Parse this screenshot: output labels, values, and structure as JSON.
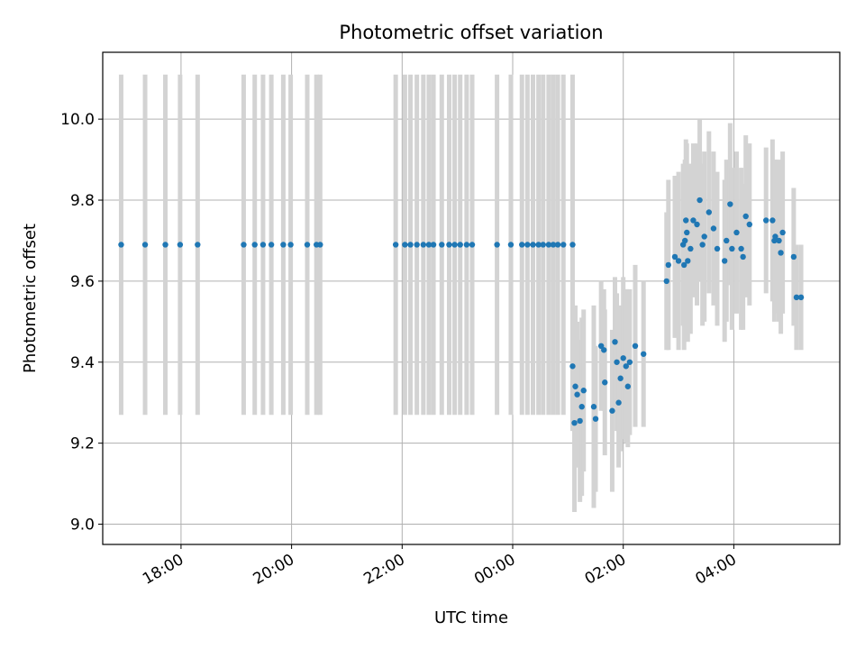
{
  "chart_data": {
    "type": "scatter",
    "title": "Photometric offset variation",
    "xlabel": "UTC time",
    "ylabel": "Photometric offset",
    "x_axis_type": "time",
    "x_start": "16:35",
    "xlim": [
      "16:35",
      "05:55"
    ],
    "ylim": [
      8.95,
      10.165
    ],
    "x_ticks": [
      "18:00",
      "20:00",
      "22:00",
      "00:00",
      "02:00",
      "04:00"
    ],
    "y_ticks": [
      9.0,
      9.2,
      9.4,
      9.6,
      9.8,
      10.0
    ],
    "y_tick_labels": [
      "9.0",
      "9.2",
      "9.4",
      "9.6",
      "9.8",
      "10.0"
    ],
    "grid": true,
    "colors": {
      "points": "#1f77b4",
      "errorbars": "#d3d3d3",
      "grid": "#b0b0b0"
    },
    "points": [
      [
        "16:55",
        9.69,
        0.42
      ],
      [
        "17:21",
        9.69,
        0.42
      ],
      [
        "17:43",
        9.69,
        0.42
      ],
      [
        "17:59",
        9.69,
        0.42
      ],
      [
        "18:18",
        9.69,
        0.42
      ],
      [
        "19:08",
        9.69,
        0.42
      ],
      [
        "19:20",
        9.69,
        0.42
      ],
      [
        "19:29",
        9.69,
        0.42
      ],
      [
        "19:38",
        9.69,
        0.42
      ],
      [
        "19:51",
        9.69,
        0.42
      ],
      [
        "19:59",
        9.69,
        0.42
      ],
      [
        "20:17",
        9.69,
        0.42
      ],
      [
        "20:27",
        9.69,
        0.42
      ],
      [
        "20:31",
        9.69,
        0.42
      ],
      [
        "21:53",
        9.69,
        0.42
      ],
      [
        "22:03",
        9.69,
        0.42
      ],
      [
        "22:09",
        9.69,
        0.42
      ],
      [
        "22:16",
        9.69,
        0.42
      ],
      [
        "22:23",
        9.69,
        0.42
      ],
      [
        "22:29",
        9.69,
        0.42
      ],
      [
        "22:34",
        9.69,
        0.42
      ],
      [
        "22:43",
        9.69,
        0.42
      ],
      [
        "22:51",
        9.69,
        0.42
      ],
      [
        "22:57",
        9.69,
        0.42
      ],
      [
        "23:03",
        9.69,
        0.42
      ],
      [
        "23:10",
        9.69,
        0.42
      ],
      [
        "23:16",
        9.69,
        0.42
      ],
      [
        "23:43",
        9.69,
        0.42
      ],
      [
        "23:58",
        9.69,
        0.42
      ],
      [
        "00:10",
        9.69,
        0.42
      ],
      [
        "00:16",
        9.69,
        0.42
      ],
      [
        "00:22",
        9.69,
        0.42
      ],
      [
        "00:28",
        9.69,
        0.42
      ],
      [
        "00:33",
        9.69,
        0.42
      ],
      [
        "00:39",
        9.69,
        0.42
      ],
      [
        "00:44",
        9.69,
        0.42
      ],
      [
        "00:49",
        9.69,
        0.42
      ],
      [
        "00:55",
        9.69,
        0.42
      ],
      [
        "01:05",
        9.69,
        0.42
      ],
      [
        "01:05",
        9.39,
        0.16
      ],
      [
        "01:07",
        9.25,
        0.22
      ],
      [
        "01:08",
        9.34,
        0.2
      ],
      [
        "01:10",
        9.32,
        0.18
      ],
      [
        "01:13",
        9.255,
        0.2
      ],
      [
        "01:15",
        9.29,
        0.22
      ],
      [
        "01:17",
        9.33,
        0.2
      ],
      [
        "01:28",
        9.29,
        0.25
      ],
      [
        "01:30",
        9.26,
        0.18
      ],
      [
        "01:36",
        9.44,
        0.16
      ],
      [
        "01:39",
        9.43,
        0.15
      ],
      [
        "01:40",
        9.35,
        0.18
      ],
      [
        "01:48",
        9.28,
        0.2
      ],
      [
        "01:51",
        9.45,
        0.16
      ],
      [
        "01:53",
        9.4,
        0.17
      ],
      [
        "01:55",
        9.3,
        0.16
      ],
      [
        "01:57",
        9.36,
        0.18
      ],
      [
        "02:00",
        9.41,
        0.2
      ],
      [
        "02:03",
        9.39,
        0.19
      ],
      [
        "02:05",
        9.34,
        0.15
      ],
      [
        "02:07",
        9.4,
        0.18
      ],
      [
        "02:13",
        9.44,
        0.2
      ],
      [
        "02:22",
        9.42,
        0.18
      ],
      [
        "02:47",
        9.6,
        0.17
      ],
      [
        "02:49",
        9.64,
        0.21
      ],
      [
        "02:56",
        9.66,
        0.2
      ],
      [
        "03:00",
        9.65,
        0.22
      ],
      [
        "03:05",
        9.69,
        0.2
      ],
      [
        "03:06",
        9.64,
        0.21
      ],
      [
        "03:07",
        9.7,
        0.2
      ],
      [
        "03:08",
        9.75,
        0.2
      ],
      [
        "03:09",
        9.72,
        0.22
      ],
      [
        "03:10",
        9.65,
        0.2
      ],
      [
        "03:13",
        9.68,
        0.21
      ],
      [
        "03:16",
        9.75,
        0.19
      ],
      [
        "03:20",
        9.74,
        0.2
      ],
      [
        "03:23",
        9.8,
        0.2
      ],
      [
        "03:26",
        9.69,
        0.2
      ],
      [
        "03:28",
        9.71,
        0.21
      ],
      [
        "03:33",
        9.77,
        0.2
      ],
      [
        "03:38",
        9.73,
        0.19
      ],
      [
        "03:42",
        9.68,
        0.19
      ],
      [
        "03:50",
        9.65,
        0.2
      ],
      [
        "03:52",
        9.7,
        0.2
      ],
      [
        "03:56",
        9.79,
        0.2
      ],
      [
        "03:58",
        9.68,
        0.2
      ],
      [
        "04:03",
        9.72,
        0.2
      ],
      [
        "04:08",
        9.68,
        0.2
      ],
      [
        "04:10",
        9.66,
        0.18
      ],
      [
        "04:13",
        9.76,
        0.2
      ],
      [
        "04:17",
        9.74,
        0.2
      ],
      [
        "04:35",
        9.75,
        0.18
      ],
      [
        "04:42",
        9.75,
        0.2
      ],
      [
        "04:44",
        9.7,
        0.2
      ],
      [
        "04:45",
        9.71,
        0.19
      ],
      [
        "04:49",
        9.7,
        0.2
      ],
      [
        "04:51",
        9.67,
        0.2
      ],
      [
        "04:53",
        9.72,
        0.2
      ],
      [
        "05:05",
        9.66,
        0.17
      ],
      [
        "05:08",
        9.56,
        0.13
      ],
      [
        "05:13",
        9.56,
        0.13
      ]
    ]
  }
}
